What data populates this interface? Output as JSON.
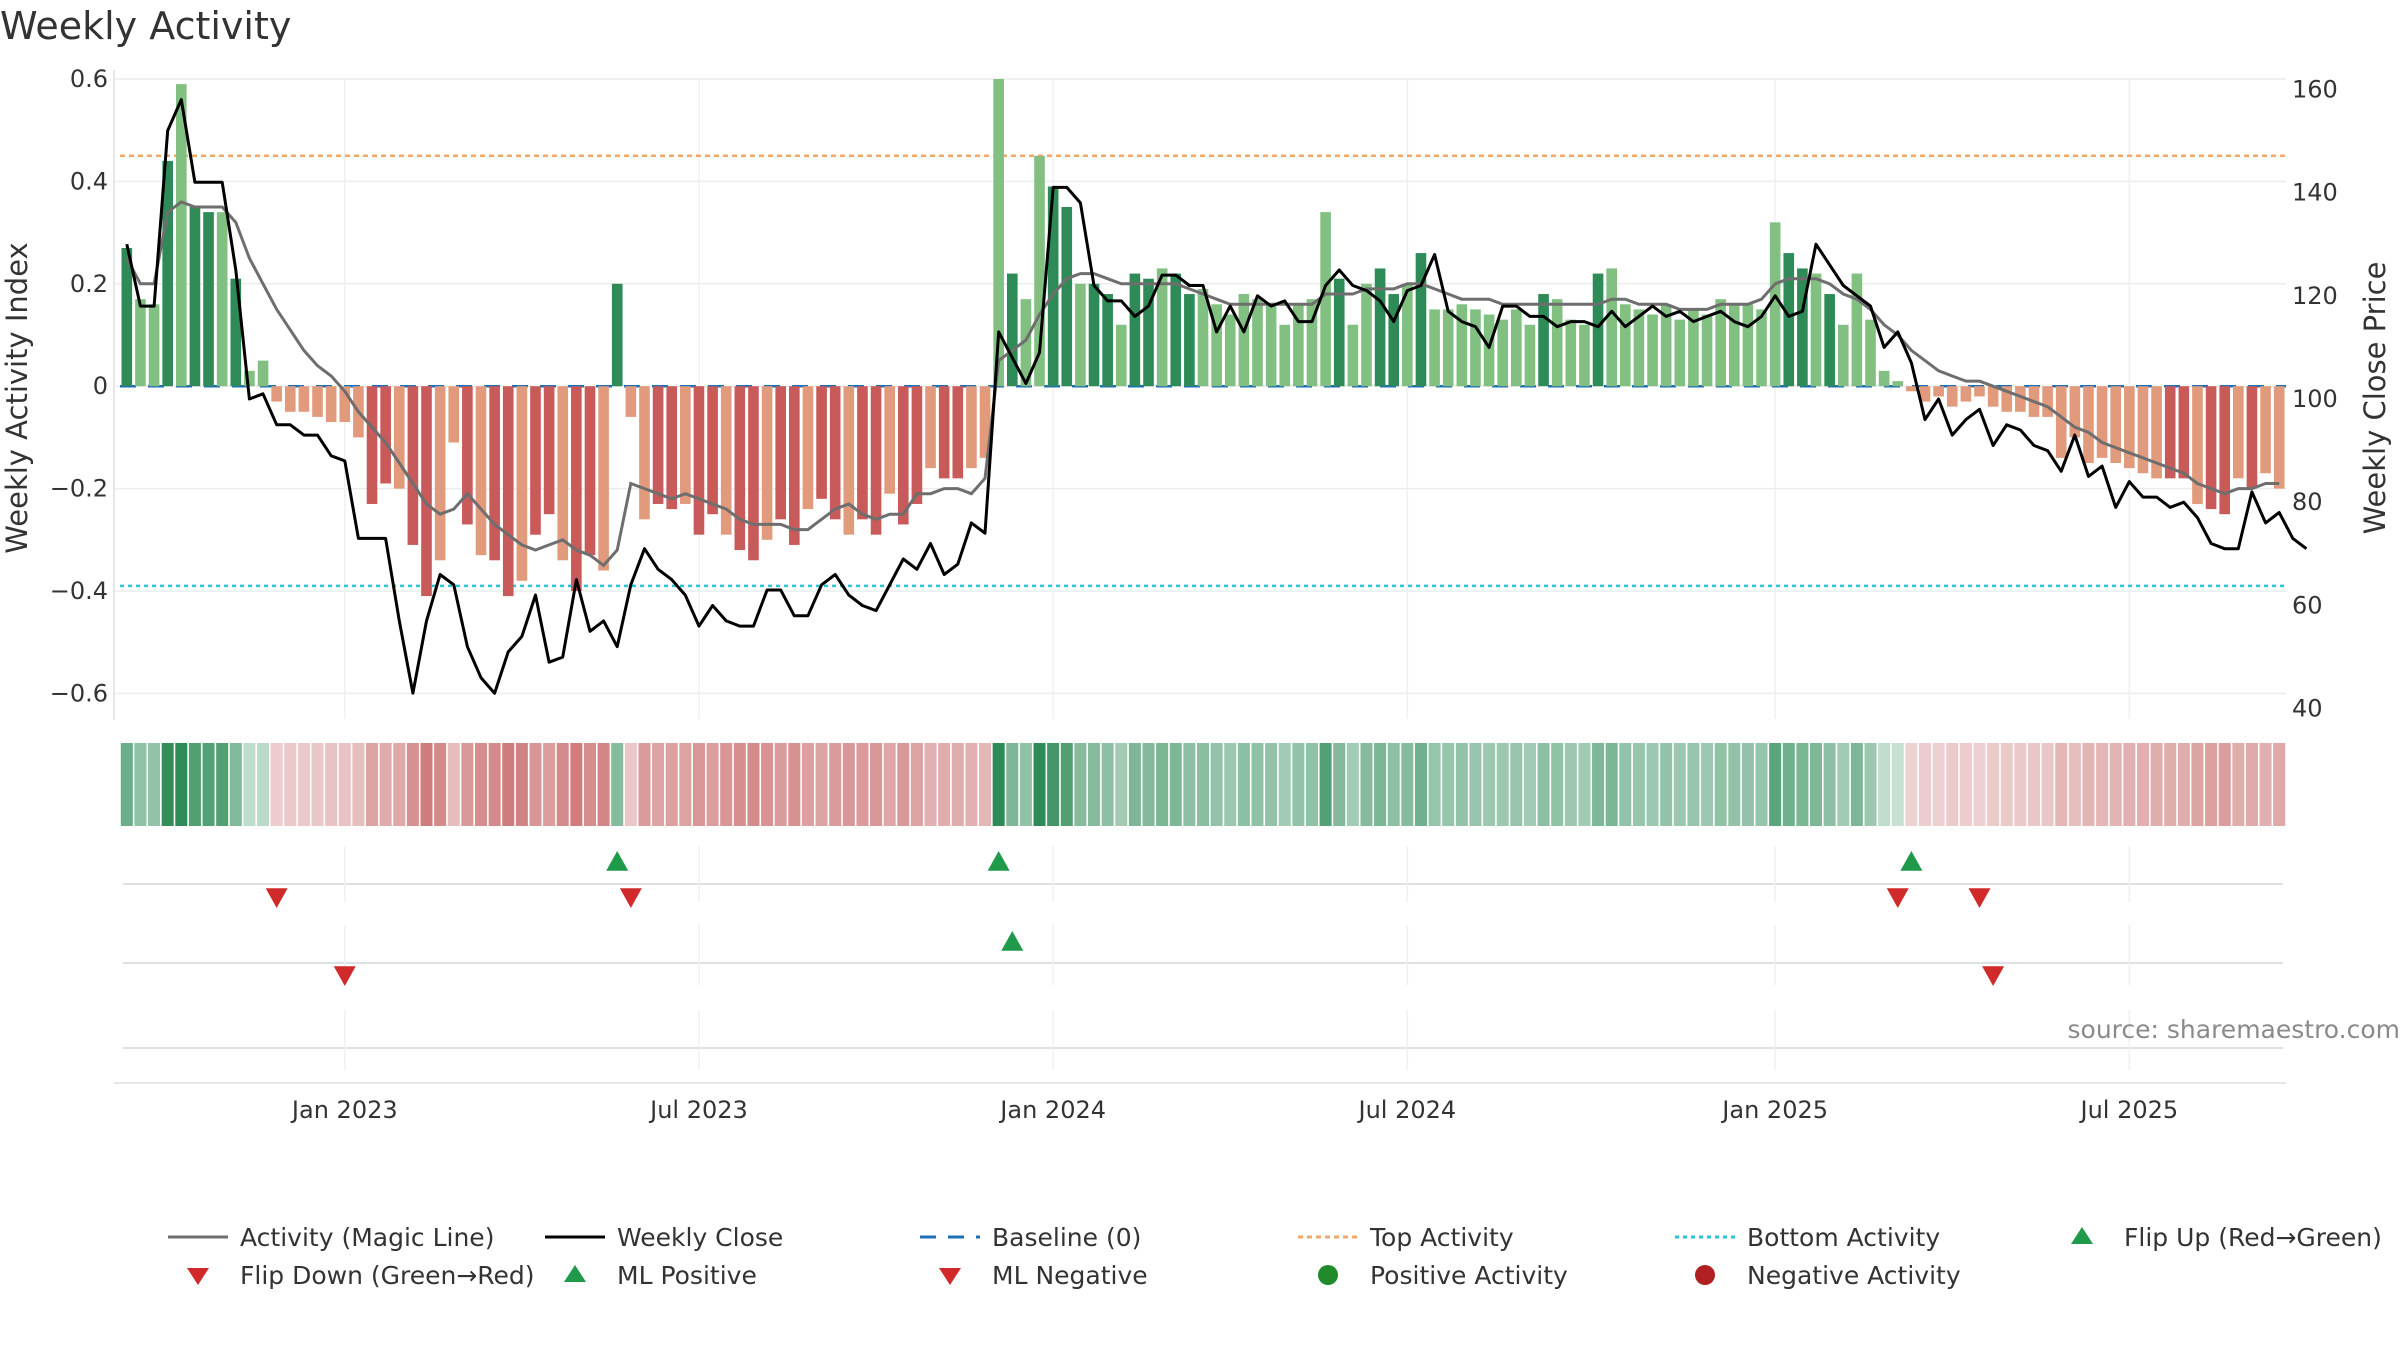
{
  "header": {
    "title": "Weekly Activity"
  },
  "source_note": "source: sharemaestro.com",
  "colors": {
    "green_dark": "#2e8b57",
    "green_light": "#82c082",
    "red_dark": "#c85a5a",
    "red_light": "#e29a7c",
    "magic_line": "#6e6e6e",
    "close_line": "#000000",
    "baseline": "#1f6fb5",
    "top": "#f0a868",
    "bottom": "#2ec4d4",
    "marker_green": "#1e9a4a",
    "marker_red": "#d02a2a"
  },
  "legend": [
    {
      "key": "magic",
      "label": "Activity (Magic Line)"
    },
    {
      "key": "close",
      "label": "Weekly Close"
    },
    {
      "key": "baseline",
      "label": "Baseline (0)"
    },
    {
      "key": "top",
      "label": "Top Activity"
    },
    {
      "key": "bottom",
      "label": "Bottom Activity"
    },
    {
      "key": "flipup",
      "label": "Flip Up (Red→Green)"
    },
    {
      "key": "flipdown",
      "label": "Flip Down (Green→Red)"
    },
    {
      "key": "mlpos",
      "label": "ML Positive"
    },
    {
      "key": "mlneg",
      "label": "ML Negative"
    },
    {
      "key": "posact",
      "label": "Positive Activity"
    },
    {
      "key": "negact",
      "label": "Negative Activity"
    }
  ],
  "chart_data": {
    "type": "bar",
    "title": "Weekly Activity",
    "ylabel_left": "Weekly Activity Index",
    "ylabel_right": "Weekly Close Price",
    "ylim_left": [
      -0.65,
      0.6
    ],
    "ylim_right": [
      38,
      162
    ],
    "yticks_left": [
      {
        "v": 0.6,
        "label": "0.6"
      },
      {
        "v": 0.4,
        "label": "0.4"
      },
      {
        "v": 0.2,
        "label": "0.2"
      },
      {
        "v": 0,
        "label": "0"
      },
      {
        "v": -0.2,
        "label": "−0.2"
      },
      {
        "v": -0.4,
        "label": "−0.4"
      },
      {
        "v": -0.6,
        "label": "−0.6"
      }
    ],
    "yticks_right": [
      160,
      140,
      120,
      100,
      80,
      60,
      40
    ],
    "xticks": [
      {
        "week": 16,
        "label": "Jan 2023"
      },
      {
        "week": 42,
        "label": "Jul 2023"
      },
      {
        "week": 68,
        "label": "Jan 2024"
      },
      {
        "week": 94,
        "label": "Jul 2024"
      },
      {
        "week": 121,
        "label": "Jan 2025"
      },
      {
        "week": 147,
        "label": "Jul 2025"
      }
    ],
    "top_activity": 0.45,
    "bottom_activity": -0.39,
    "baseline": 0,
    "activity": [
      0.27,
      0.17,
      0.16,
      0.44,
      0.59,
      0.35,
      0.34,
      0.34,
      0.21,
      0.03,
      0.05,
      -0.03,
      -0.05,
      -0.05,
      -0.06,
      -0.07,
      -0.07,
      -0.1,
      -0.23,
      -0.19,
      -0.2,
      -0.31,
      -0.41,
      -0.34,
      -0.11,
      -0.27,
      -0.33,
      -0.34,
      -0.41,
      -0.38,
      -0.29,
      -0.25,
      -0.34,
      -0.4,
      -0.33,
      -0.36,
      0.2,
      -0.06,
      -0.26,
      -0.23,
      -0.24,
      -0.23,
      -0.29,
      -0.25,
      -0.29,
      -0.32,
      -0.34,
      -0.3,
      -0.26,
      -0.31,
      -0.24,
      -0.22,
      -0.26,
      -0.29,
      -0.26,
      -0.29,
      -0.21,
      -0.27,
      -0.23,
      -0.16,
      -0.18,
      -0.18,
      -0.16,
      -0.14,
      0.6,
      0.22,
      0.17,
      0.45,
      0.39,
      0.35,
      0.2,
      0.2,
      0.18,
      0.12,
      0.22,
      0.21,
      0.23,
      0.22,
      0.18,
      0.19,
      0.16,
      0.14,
      0.18,
      0.17,
      0.16,
      0.12,
      0.16,
      0.17,
      0.34,
      0.21,
      0.12,
      0.2,
      0.23,
      0.18,
      0.2,
      0.26,
      0.15,
      0.15,
      0.16,
      0.15,
      0.14,
      0.13,
      0.15,
      0.12,
      0.18,
      0.17,
      0.13,
      0.12,
      0.22,
      0.23,
      0.16,
      0.15,
      0.14,
      0.16,
      0.13,
      0.15,
      0.14,
      0.17,
      0.16,
      0.16,
      0.15,
      0.32,
      0.26,
      0.23,
      0.22,
      0.18,
      0.12,
      0.22,
      0.13,
      0.03,
      0.01,
      -0.01,
      -0.03,
      -0.02,
      -0.04,
      -0.03,
      -0.02,
      -0.04,
      -0.05,
      -0.05,
      -0.06,
      -0.06,
      -0.14,
      -0.1,
      -0.15,
      -0.14,
      -0.15,
      -0.16,
      -0.17,
      -0.18,
      -0.18,
      -0.18,
      -0.23,
      -0.24,
      -0.25,
      -0.18,
      -0.2,
      -0.17,
      -0.2
    ],
    "magic_line": [
      0.25,
      0.2,
      0.2,
      0.34,
      0.36,
      0.35,
      0.35,
      0.35,
      0.32,
      0.25,
      0.2,
      0.15,
      0.11,
      0.07,
      0.04,
      0.02,
      -0.01,
      -0.05,
      -0.08,
      -0.11,
      -0.15,
      -0.19,
      -0.23,
      -0.25,
      -0.24,
      -0.21,
      -0.24,
      -0.27,
      -0.29,
      -0.31,
      -0.32,
      -0.31,
      -0.3,
      -0.32,
      -0.33,
      -0.35,
      -0.32,
      -0.19,
      -0.2,
      -0.21,
      -0.22,
      -0.21,
      -0.22,
      -0.23,
      -0.24,
      -0.26,
      -0.27,
      -0.27,
      -0.27,
      -0.28,
      -0.28,
      -0.26,
      -0.24,
      -0.23,
      -0.25,
      -0.26,
      -0.25,
      -0.25,
      -0.21,
      -0.21,
      -0.2,
      -0.2,
      -0.21,
      -0.18,
      0.05,
      0.07,
      0.09,
      0.14,
      0.18,
      0.21,
      0.22,
      0.22,
      0.21,
      0.2,
      0.2,
      0.2,
      0.2,
      0.2,
      0.19,
      0.18,
      0.17,
      0.16,
      0.16,
      0.16,
      0.16,
      0.16,
      0.16,
      0.16,
      0.18,
      0.18,
      0.18,
      0.19,
      0.19,
      0.19,
      0.2,
      0.2,
      0.19,
      0.18,
      0.17,
      0.17,
      0.17,
      0.16,
      0.16,
      0.16,
      0.16,
      0.16,
      0.16,
      0.16,
      0.16,
      0.17,
      0.17,
      0.16,
      0.16,
      0.16,
      0.15,
      0.15,
      0.15,
      0.16,
      0.16,
      0.16,
      0.17,
      0.2,
      0.21,
      0.21,
      0.21,
      0.2,
      0.18,
      0.17,
      0.15,
      0.12,
      0.1,
      0.07,
      0.05,
      0.03,
      0.02,
      0.01,
      0.01,
      0.0,
      -0.01,
      -0.02,
      -0.03,
      -0.04,
      -0.06,
      -0.08,
      -0.09,
      -0.11,
      -0.12,
      -0.13,
      -0.14,
      -0.15,
      -0.16,
      -0.17,
      -0.19,
      -0.2,
      -0.21,
      -0.2,
      -0.2,
      -0.19,
      -0.19
    ],
    "weekly_close": [
      130,
      118,
      118,
      152,
      158,
      142,
      142,
      142,
      125,
      100,
      101,
      95,
      95,
      93,
      93,
      89,
      88,
      73,
      73,
      73,
      57,
      43,
      57,
      66,
      64,
      52,
      46,
      43,
      51,
      54,
      62,
      49,
      50,
      65,
      55,
      57,
      52,
      64,
      71,
      67,
      65,
      62,
      56,
      60,
      57,
      56,
      56,
      63,
      63,
      58,
      58,
      64,
      66,
      62,
      60,
      59,
      64,
      69,
      67,
      72,
      66,
      68,
      76,
      74,
      113,
      108,
      103,
      109,
      141,
      141,
      138,
      122,
      119,
      119,
      116,
      118,
      124,
      124,
      122,
      122,
      113,
      118,
      113,
      120,
      118,
      119,
      115,
      115,
      122,
      125,
      122,
      121,
      119,
      115,
      121,
      122,
      128,
      117,
      115,
      114,
      110,
      118,
      118,
      116,
      116,
      114,
      115,
      115,
      114,
      117,
      114,
      116,
      118,
      116,
      117,
      115,
      116,
      117,
      115,
      114,
      116,
      120,
      116,
      117,
      130,
      126,
      122,
      120,
      118,
      110,
      113,
      107,
      96,
      100,
      93,
      96,
      98,
      91,
      95,
      94,
      91,
      90,
      86,
      93,
      85,
      87,
      79,
      84,
      81,
      81,
      79,
      80,
      77,
      72,
      71,
      71,
      82,
      76,
      78,
      73,
      71
    ]
  },
  "activity_strip": [
    0.27,
    0.17,
    0.16,
    0.44,
    0.59,
    0.35,
    0.34,
    0.34,
    0.21,
    0.03,
    0.05,
    -0.03,
    -0.05,
    -0.05,
    -0.06,
    -0.07,
    -0.07,
    -0.1,
    -0.23,
    -0.19,
    -0.2,
    -0.31,
    -0.41,
    -0.34,
    -0.11,
    -0.27,
    -0.33,
    -0.34,
    -0.41,
    -0.38,
    -0.29,
    -0.25,
    -0.34,
    -0.4,
    -0.33,
    -0.36,
    0.2,
    -0.06,
    -0.26,
    -0.23,
    -0.24,
    -0.23,
    -0.29,
    -0.25,
    -0.29,
    -0.32,
    -0.34,
    -0.3,
    -0.26,
    -0.31,
    -0.24,
    -0.22,
    -0.26,
    -0.29,
    -0.26,
    -0.29,
    -0.21,
    -0.27,
    -0.23,
    -0.16,
    -0.18,
    -0.18,
    -0.16,
    -0.14,
    0.6,
    0.22,
    0.17,
    0.45,
    0.39,
    0.35,
    0.2,
    0.2,
    0.18,
    0.12,
    0.22,
    0.21,
    0.23,
    0.22,
    0.18,
    0.19,
    0.16,
    0.14,
    0.18,
    0.17,
    0.16,
    0.12,
    0.16,
    0.17,
    0.34,
    0.21,
    0.12,
    0.2,
    0.23,
    0.18,
    0.2,
    0.26,
    0.15,
    0.15,
    0.16,
    0.15,
    0.14,
    0.13,
    0.15,
    0.12,
    0.18,
    0.17,
    0.13,
    0.12,
    0.22,
    0.23,
    0.16,
    0.15,
    0.14,
    0.16,
    0.13,
    0.15,
    0.14,
    0.17,
    0.16,
    0.16,
    0.15,
    0.32,
    0.26,
    0.23,
    0.22,
    0.18,
    0.12,
    0.22,
    0.13,
    0.03,
    0.01,
    -0.01,
    -0.03,
    -0.02,
    -0.04,
    -0.03,
    -0.02,
    -0.04,
    -0.05,
    -0.05,
    -0.06,
    -0.06,
    -0.14,
    -0.1,
    -0.15,
    -0.14,
    -0.15,
    -0.16,
    -0.17,
    -0.18,
    -0.18,
    -0.18,
    -0.23,
    -0.24,
    -0.25,
    -0.18,
    -0.2,
    -0.17,
    -0.2
  ],
  "event_rows": {
    "flip_up_weeks": [
      36,
      64,
      131
    ],
    "flip_down_weeks": [
      11,
      37,
      130,
      136
    ],
    "ml_positive_weeks": [
      65
    ],
    "ml_negative_weeks": [
      16,
      137
    ]
  }
}
